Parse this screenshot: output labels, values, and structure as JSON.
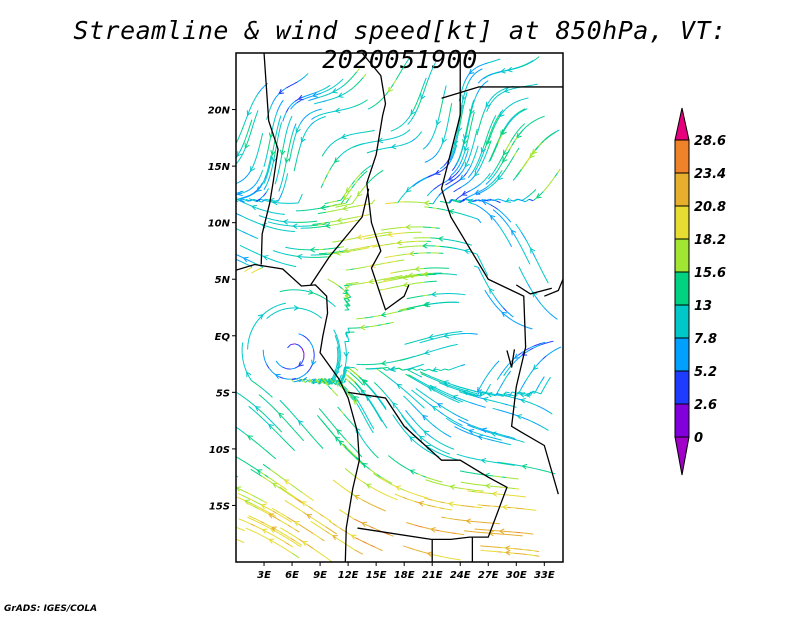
{
  "title": "Streamline & wind speed[kt] at 850hPa, VT: 2020051900",
  "credit": "GrADS: IGES/COLA",
  "map": {
    "lon_range": [
      0,
      35
    ],
    "lat_range": [
      -20,
      25
    ],
    "lon_ticks": [
      {
        "v": 3,
        "label": "3E"
      },
      {
        "v": 6,
        "label": "6E"
      },
      {
        "v": 9,
        "label": "9E"
      },
      {
        "v": 12,
        "label": "12E"
      },
      {
        "v": 15,
        "label": "15E"
      },
      {
        "v": 18,
        "label": "18E"
      },
      {
        "v": 21,
        "label": "21E"
      },
      {
        "v": 24,
        "label": "24E"
      },
      {
        "v": 27,
        "label": "27E"
      },
      {
        "v": 30,
        "label": "30E"
      },
      {
        "v": 33,
        "label": "33E"
      }
    ],
    "lat_ticks": [
      {
        "v": 20,
        "label": "20N"
      },
      {
        "v": 15,
        "label": "15N"
      },
      {
        "v": 10,
        "label": "10N"
      },
      {
        "v": 5,
        "label": "5N"
      },
      {
        "v": 0,
        "label": "EQ"
      },
      {
        "v": -5,
        "label": "5S"
      },
      {
        "v": -10,
        "label": "10S"
      },
      {
        "v": -15,
        "label": "15S"
      }
    ]
  },
  "colorbar": {
    "labels": [
      "0",
      "2.6",
      "5.2",
      "7.8",
      "13",
      "15.6",
      "18.2",
      "20.8",
      "23.4",
      "28.6"
    ],
    "colors": [
      "#a000c8",
      "#8200dc",
      "#1e3cff",
      "#00a0ff",
      "#00c8c8",
      "#00d282",
      "#a0e632",
      "#e6dc32",
      "#e6af2d",
      "#f0822a",
      "#e6007d"
    ]
  }
}
